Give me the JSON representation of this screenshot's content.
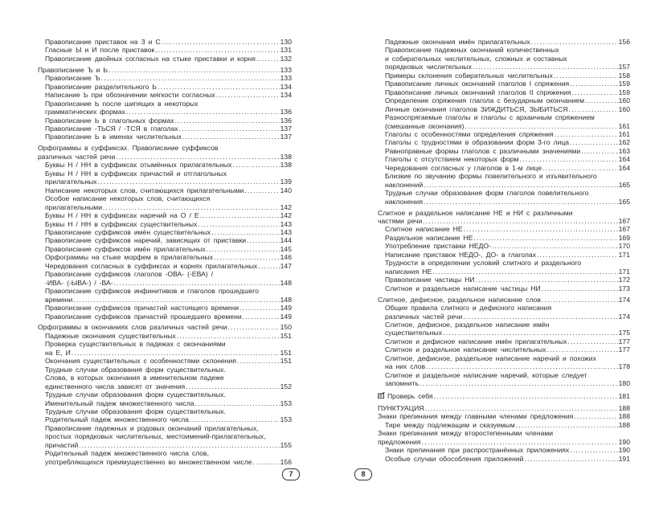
{
  "left_page": {
    "page_number": "7",
    "entries": [
      {
        "level": 1,
        "lines": [
          "Правописание приставок на З и С"
        ],
        "page": "130"
      },
      {
        "level": 1,
        "lines": [
          "Гласные Ы и И после приставок"
        ],
        "page": "131"
      },
      {
        "level": 1,
        "lines": [
          "Правописание двойных согласных на стыке приставки и корня"
        ],
        "page": "132"
      },
      {
        "level": 0,
        "lines": [
          "Правописание Ъ и Ь"
        ],
        "page": "133"
      },
      {
        "level": 1,
        "lines": [
          "Правописание Ъ"
        ],
        "page": "133"
      },
      {
        "level": 1,
        "lines": [
          "Правописание разделительного Ь"
        ],
        "page": "134"
      },
      {
        "level": 1,
        "lines": [
          "Написание Ь при обозначении мягкости согласных"
        ],
        "page": "134"
      },
      {
        "level": 1,
        "lines": [
          "Правописание Ь после шипящих в некоторых",
          "грамматических формах"
        ],
        "page": "136"
      },
      {
        "level": 1,
        "lines": [
          "Правописание Ь в глагольных формах"
        ],
        "page": "136"
      },
      {
        "level": 1,
        "lines": [
          "Правописание -ТЬСЯ / -ТСЯ в глаголах"
        ],
        "page": "137"
      },
      {
        "level": 1,
        "lines": [
          "Правописание Ь в именах числительных"
        ],
        "page": "137"
      },
      {
        "level": 0,
        "lines": [
          "Орфограммы в суффиксах. Правописание суффиксов",
          "различных частей речи"
        ],
        "page": "138"
      },
      {
        "level": 1,
        "lines": [
          "Буквы Н / НН в суффиксах отымённых прилагательных"
        ],
        "page": "138"
      },
      {
        "level": 1,
        "lines": [
          "Буквы Н / НН в суффиксах причастий и отглагольных",
          "прилагательных"
        ],
        "page": "139"
      },
      {
        "level": 1,
        "lines": [
          "Написание некоторых слов, считающихся прилагательными"
        ],
        "page": "140"
      },
      {
        "level": 1,
        "lines": [
          "Особое написание некоторых слов, считающихся",
          "прилагательными"
        ],
        "page": "142"
      },
      {
        "level": 1,
        "lines": [
          "Буквы Н / НН в суффиксах наречий на О / Е"
        ],
        "page": "142"
      },
      {
        "level": 1,
        "lines": [
          "Буквы Н / НН в суффиксах существительных"
        ],
        "page": "143"
      },
      {
        "level": 1,
        "lines": [
          "Правописание суффиксов имён существительных"
        ],
        "page": "143"
      },
      {
        "level": 1,
        "lines": [
          "Правописание суффиксов наречий, зависящих от приставки"
        ],
        "page": "144"
      },
      {
        "level": 1,
        "lines": [
          "Правописание суффиксов имён прилагательных"
        ],
        "page": "145"
      },
      {
        "level": 1,
        "lines": [
          "Орфограммы на стыке морфем в прилагательных"
        ],
        "page": "146"
      },
      {
        "level": 1,
        "lines": [
          "Чередования согласных в суффиксах и корнях прилагательных"
        ],
        "page": "147"
      },
      {
        "level": 1,
        "lines": [
          "Правописание суффиксов глаголов -ОВА- (-ЕВА) /",
          "-ИВА- (-ЫВА-) / -ВА-"
        ],
        "page": "148"
      },
      {
        "level": 1,
        "lines": [
          "Правописание суффиксов инфинитивов и глаголов прошедшего",
          "времени"
        ],
        "page": "148"
      },
      {
        "level": 1,
        "lines": [
          "Правописание суффиксов причастий настоящего времени"
        ],
        "page": "149"
      },
      {
        "level": 1,
        "lines": [
          "Правописание суффиксов причастий прошедшего времени"
        ],
        "page": "149"
      },
      {
        "level": 0,
        "lines": [
          "Орфограммы в окончаниях слов различных частей речи"
        ],
        "page": "150"
      },
      {
        "level": 1,
        "lines": [
          "Падежные окончания существительных"
        ],
        "page": "151"
      },
      {
        "level": 1,
        "lines": [
          "Проверка существительных в падежах с окончаниями",
          "на Е, И"
        ],
        "page": "151"
      },
      {
        "level": 1,
        "lines": [
          "Окончания существительных с особенностями склонения"
        ],
        "page": "151"
      },
      {
        "level": 1,
        "lines": [
          "Трудные случаи образования форм существительных.",
          "Слова, в которых окончания в именительном падеже",
          "единственного числа зависят от значения"
        ],
        "page": "152"
      },
      {
        "level": 1,
        "lines": [
          "Трудные случаи образования форм существительных.",
          "Именительный падеж множественного числа"
        ],
        "page": "153"
      },
      {
        "level": 1,
        "lines": [
          "Трудные случаи образования форм существительных.",
          "Родительный падеж множественного числа"
        ],
        "page": "153"
      },
      {
        "level": 1,
        "lines": [
          "Правописание падежных и родовых окончаний прилагательных,",
          "простых порядковых числительных, местоимений-прилагательных,",
          "причастий"
        ],
        "page": "155"
      },
      {
        "level": 1,
        "lines": [
          "Родительный падеж множественного числа слов,",
          "употребляющихся преимущественно во множественном числе"
        ],
        "page": "156"
      }
    ]
  },
  "right_page": {
    "page_number": "8",
    "entries": [
      {
        "level": 1,
        "lines": [
          "Падежные окончания имён прилагательных"
        ],
        "page": "156"
      },
      {
        "level": 1,
        "lines": [
          "Правописание падежных окончаний количественных",
          "и собирательных числительных, сложных и составных",
          "порядковых числительных"
        ],
        "page": "157"
      },
      {
        "level": 1,
        "lines": [
          "Примеры склонения собирательных числительных"
        ],
        "page": "158"
      },
      {
        "level": 1,
        "lines": [
          "Правописание личных окончаний глаголов I спряжения"
        ],
        "page": "159"
      },
      {
        "level": 1,
        "lines": [
          "Правописание личных окончаний глаголов II спряжения"
        ],
        "page": "159"
      },
      {
        "level": 1,
        "lines": [
          "Определение спряжения глагола с безударным окончанием"
        ],
        "page": "160"
      },
      {
        "level": 1,
        "lines": [
          "Личные окончания глаголов ЗИЖДИТЬСЯ, ЗЫБИТЬСЯ"
        ],
        "page": "160"
      },
      {
        "level": 1,
        "lines": [
          "Разноспрягаемые глаголы и глаголы с архаичным спряжением",
          "(смешанные окончания)"
        ],
        "page": "161"
      },
      {
        "level": 1,
        "lines": [
          "Глаголы с особенностями определения спряжения"
        ],
        "page": "161"
      },
      {
        "level": 1,
        "lines": [
          "Глаголы с трудностями в образовании форм 3-го лица"
        ],
        "page": "162"
      },
      {
        "level": 1,
        "lines": [
          "Равноправные формы глаголов с различными значениями"
        ],
        "page": "163"
      },
      {
        "level": 1,
        "lines": [
          "Глаголы с отсутствием некоторых форм"
        ],
        "page": "164"
      },
      {
        "level": 1,
        "lines": [
          "Чередования согласных у глаголов в 1-м лице"
        ],
        "page": "164"
      },
      {
        "level": 1,
        "lines": [
          "Близкие по звучанию формы повелительного и изъявительного",
          "наклонений"
        ],
        "page": "165"
      },
      {
        "level": 1,
        "lines": [
          "Трудные случаи образования форм глаголов повелительного",
          "наклонения"
        ],
        "page": "165"
      },
      {
        "level": 0,
        "lines": [
          "Слитное и раздельное написание НЕ и НИ с различными",
          "частями речи"
        ],
        "page": "167"
      },
      {
        "level": 1,
        "lines": [
          "Слитное написание НЕ"
        ],
        "page": "167"
      },
      {
        "level": 1,
        "lines": [
          "Раздельное написание НЕ"
        ],
        "page": "169"
      },
      {
        "level": 1,
        "lines": [
          "Употребление приставки НЕДО-"
        ],
        "page": "170"
      },
      {
        "level": 1,
        "lines": [
          "Написание приставок НЕДО-, ДО- в глаголах"
        ],
        "page": "171"
      },
      {
        "level": 1,
        "lines": [
          "Трудности в определении условий слитного и раздельного",
          "написания НЕ"
        ],
        "page": "171"
      },
      {
        "level": 1,
        "lines": [
          "Правописание частицы НИ"
        ],
        "page": "172"
      },
      {
        "level": 1,
        "lines": [
          "Слитное и раздельное написание частицы НИ"
        ],
        "page": "173"
      },
      {
        "level": 0,
        "lines": [
          "Слитное, дефисное, раздельное написание слов"
        ],
        "page": "174"
      },
      {
        "level": 1,
        "lines": [
          "Общие правила слитного и дефисного написания",
          "различных частей речи"
        ],
        "page": "174"
      },
      {
        "level": 1,
        "lines": [
          "Слитное, дефисное, раздельное написание имён",
          "существительных"
        ],
        "page": "175"
      },
      {
        "level": 1,
        "lines": [
          "Слитное и дефисное написание имён прилагательных"
        ],
        "page": "177"
      },
      {
        "level": 1,
        "lines": [
          "Слитное и раздельное написание числительных"
        ],
        "page": "177"
      },
      {
        "level": 1,
        "lines": [
          "Слитное, дефисное, раздельное написание наречий и похожих",
          "на них слов"
        ],
        "page": "178"
      },
      {
        "level": 1,
        "lines": [
          "Слитное и раздельное написание наречий, которые следует",
          "запомнить"
        ],
        "page": "180"
      },
      {
        "level": 0,
        "gap": true,
        "icon": "notebook-pencil-icon",
        "lines": [
          "Проверь себя"
        ],
        "page": "181"
      },
      {
        "level": 0,
        "gap": true,
        "lines": [
          "ПУНКТУАЦИЯ"
        ],
        "page": "188"
      },
      {
        "level": 0,
        "nogap": true,
        "lines": [
          "Знаки препинания между главными членами предложения"
        ],
        "page": "188"
      },
      {
        "level": 1,
        "lines": [
          "Тире между подлежащим и сказуемым"
        ],
        "page": "188"
      },
      {
        "level": 0,
        "nogap": true,
        "lines": [
          "Знаки препинания между второстепенными членами",
          "предложения"
        ],
        "page": "190"
      },
      {
        "level": 1,
        "lines": [
          "Знаки препинания при распространённых приложениях"
        ],
        "page": "190"
      },
      {
        "level": 1,
        "lines": [
          "Особые случаи обособления приложений"
        ],
        "page": "191"
      }
    ]
  }
}
